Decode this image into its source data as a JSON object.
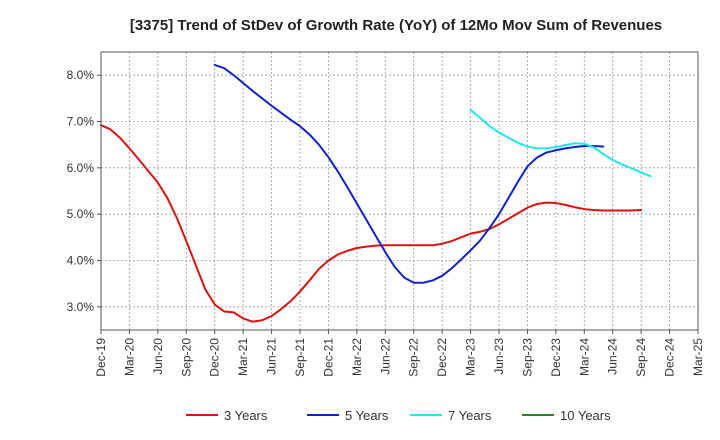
{
  "chart_data": {
    "type": "line",
    "title": "[3375]  Trend of StDev of Growth Rate (YoY) of 12Mo Mov Sum of Revenues",
    "xlabel": "",
    "ylabel": "",
    "ylim": [
      2.5,
      8.5
    ],
    "y_ticks": [
      3.0,
      4.0,
      5.0,
      6.0,
      7.0,
      8.0
    ],
    "y_tick_labels": [
      "3.0%",
      "4.0%",
      "5.0%",
      "6.0%",
      "7.0%",
      "8.0%"
    ],
    "x_range": [
      "Dec-19",
      "Mar-25"
    ],
    "x_tick_labels": [
      "Dec-19",
      "Mar-20",
      "Jun-20",
      "Sep-20",
      "Dec-20",
      "Mar-21",
      "Jun-21",
      "Sep-21",
      "Dec-21",
      "Mar-22",
      "Jun-22",
      "Sep-22",
      "Dec-22",
      "Mar-23",
      "Jun-23",
      "Sep-23",
      "Dec-23",
      "Mar-24",
      "Jun-24",
      "Sep-24",
      "Dec-24",
      "Mar-25"
    ],
    "grid": true,
    "legend_position": "bottom",
    "series": [
      {
        "name": "3 Years",
        "color": "#dd1111",
        "start": "Dec-19",
        "values": [
          6.92,
          6.83,
          6.65,
          6.42,
          6.18,
          5.93,
          5.68,
          5.35,
          4.92,
          4.42,
          3.9,
          3.38,
          3.05,
          2.9,
          2.88,
          2.75,
          2.68,
          2.71,
          2.8,
          2.95,
          3.12,
          3.33,
          3.57,
          3.82,
          4.0,
          4.13,
          4.21,
          4.27,
          4.3,
          4.32,
          4.33,
          4.33,
          4.33,
          4.33,
          4.33,
          4.33,
          4.36,
          4.42,
          4.5,
          4.58,
          4.62,
          4.68,
          4.78,
          4.9,
          5.02,
          5.14,
          5.22,
          5.25,
          5.24,
          5.2,
          5.15,
          5.11,
          5.09,
          5.08,
          5.08,
          5.08,
          5.08,
          5.09
        ]
      },
      {
        "name": "5 Years",
        "color": "#1122cc",
        "start": "Dec-20",
        "values": [
          8.22,
          8.15,
          8.0,
          7.83,
          7.66,
          7.5,
          7.34,
          7.19,
          7.04,
          6.9,
          6.72,
          6.5,
          6.23,
          5.92,
          5.58,
          5.23,
          4.88,
          4.53,
          4.18,
          3.86,
          3.63,
          3.52,
          3.52,
          3.57,
          3.67,
          3.83,
          4.02,
          4.22,
          4.43,
          4.7,
          5.0,
          5.35,
          5.7,
          6.03,
          6.22,
          6.33,
          6.38,
          6.42,
          6.45,
          6.47,
          6.47,
          6.46
        ]
      },
      {
        "name": "7 Years",
        "color": "#22e8ee",
        "start": "Mar-23",
        "values": [
          7.25,
          7.08,
          6.9,
          6.76,
          6.65,
          6.54,
          6.46,
          6.42,
          6.42,
          6.45,
          6.49,
          6.53,
          6.52,
          6.44,
          6.3,
          6.17,
          6.07,
          5.99,
          5.9,
          5.82
        ]
      },
      {
        "name": "10 Years",
        "color": "#228822",
        "start": "Dec-24",
        "values": []
      }
    ]
  }
}
